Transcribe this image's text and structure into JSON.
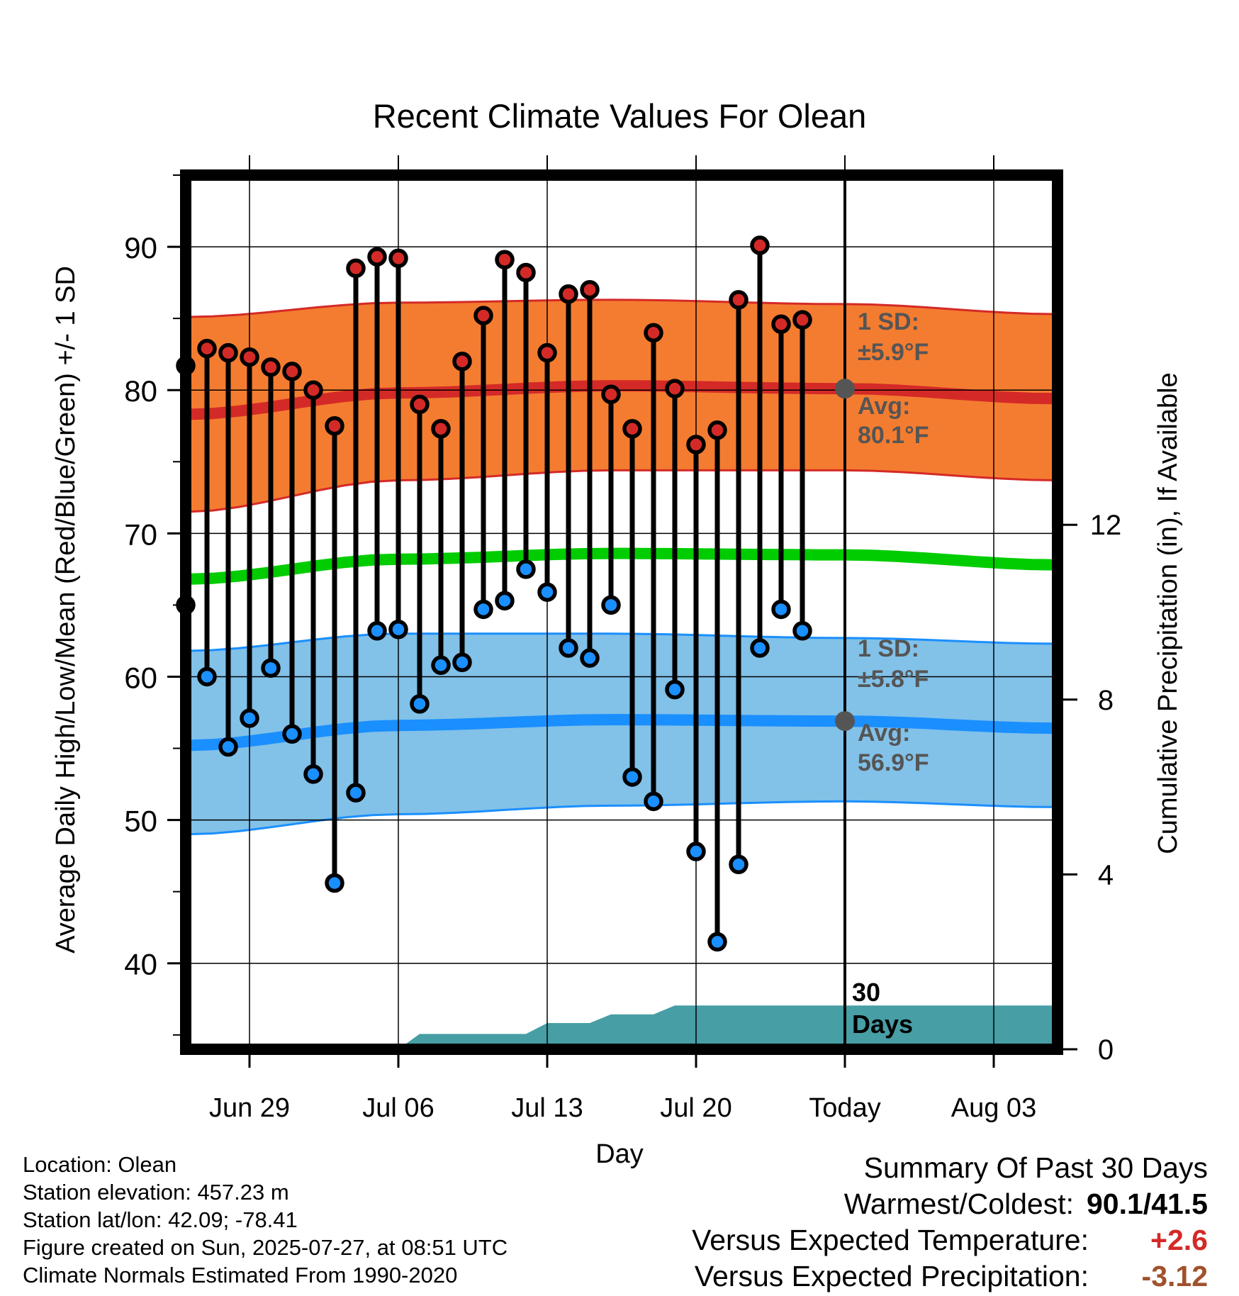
{
  "title": "Recent Climate Values For Olean",
  "y_axis_label": "Average Daily High/Low/Mean (Red/Blue/Green) +/- 1 SD",
  "y2_axis_label": "Cumulative Precipitation (in), If Available",
  "x_axis_label": "Day",
  "y_ticks": [
    "40",
    "50",
    "60",
    "70",
    "80",
    "90"
  ],
  "y2_ticks": [
    "0",
    "4",
    "8",
    "12"
  ],
  "x_ticks": [
    "Jun 29",
    "Jul 06",
    "Jul 13",
    "Jul 20",
    "Today",
    "Aug 03"
  ],
  "high_sd_title": "1 SD:",
  "high_sd_value": "±5.9°F",
  "high_avg_title": "Avg:",
  "high_avg_value": "80.1°F",
  "low_sd_title": "1 SD:",
  "low_sd_value": "±5.8°F",
  "low_avg_title": "Avg:",
  "low_avg_value": "56.9°F",
  "window_label_1": "30",
  "window_label_2": "Days",
  "footer": {
    "location": "Location: Olean",
    "elevation": "Station elevation: 457.23 m",
    "latlon": "Station lat/lon: 42.09; -78.41",
    "created": "Figure created on Sun, 2025-07-27, at 08:51 UTC",
    "normals": "Climate Normals Estimated From 1990-2020"
  },
  "summary": {
    "heading": "Summary Of Past 30 Days",
    "warm_cold_label": "Warmest/Coldest:",
    "warm_cold_value": "90.1/41.5",
    "temp_label": "Versus Expected Temperature:",
    "temp_value": "+2.6",
    "precip_label": "Versus Expected Precipitation:",
    "precip_value": "-3.12"
  },
  "colors": {
    "high_band": "#f47c30",
    "high_line": "#d42a27",
    "low_band": "#82c1e8",
    "low_line": "#1a8fff",
    "mean_line": "#00cc00",
    "precip": "#479ea5",
    "high_dot": "#d42a27",
    "low_dot": "#1a8fff",
    "annotation": "#555555"
  },
  "chart_data": {
    "type": "line",
    "x_dates": [
      "Jun 26",
      "Jun 27",
      "Jun 28",
      "Jun 29",
      "Jun 30",
      "Jul 01",
      "Jul 02",
      "Jul 03",
      "Jul 04",
      "Jul 05",
      "Jul 06",
      "Jul 07",
      "Jul 08",
      "Jul 09",
      "Jul 10",
      "Jul 11",
      "Jul 12",
      "Jul 13",
      "Jul 14",
      "Jul 15",
      "Jul 16",
      "Jul 17",
      "Jul 18",
      "Jul 19",
      "Jul 20",
      "Jul 21",
      "Jul 22",
      "Jul 23",
      "Jul 24",
      "Jul 25",
      "Jul 26"
    ],
    "x_range": [
      "Jun 26",
      "Aug 06"
    ],
    "ylim": [
      34,
      95
    ],
    "y2lim": [
      0,
      20
    ],
    "daily_high": [
      81.7,
      82.9,
      82.6,
      82.3,
      81.6,
      81.3,
      80.0,
      77.5,
      88.5,
      89.3,
      89.2,
      79.0,
      77.3,
      82.0,
      85.2,
      89.1,
      88.2,
      82.6,
      86.7,
      87.0,
      79.7,
      77.3,
      84.0,
      80.1,
      76.2,
      77.2,
      86.3,
      90.1,
      84.6,
      84.9,
      null
    ],
    "daily_low": [
      65.0,
      60.0,
      55.1,
      57.1,
      60.6,
      56.0,
      53.2,
      45.6,
      51.9,
      63.2,
      63.3,
      58.1,
      60.8,
      61.0,
      64.7,
      65.3,
      67.5,
      65.9,
      62.0,
      61.3,
      65.0,
      53.0,
      51.3,
      59.1,
      47.8,
      41.5,
      46.9,
      62.0,
      64.7,
      63.2,
      null
    ],
    "normals_dates": [
      "Jun 26",
      "Jul 06",
      "Jul 16",
      "Jul 27",
      "Aug 06"
    ],
    "avg_high": [
      78.3,
      79.8,
      80.3,
      80.1,
      79.4
    ],
    "avg_high_upper": [
      85.1,
      86.1,
      86.3,
      86.0,
      85.3
    ],
    "avg_high_lower": [
      71.5,
      73.7,
      74.4,
      74.4,
      73.7
    ],
    "avg_mean": [
      66.8,
      68.2,
      68.6,
      68.5,
      67.8
    ],
    "avg_low": [
      55.2,
      56.6,
      57.0,
      56.9,
      56.4
    ],
    "avg_low_upper": [
      61.8,
      63.0,
      63.0,
      62.7,
      62.3
    ],
    "avg_low_lower": [
      49.0,
      50.4,
      51.0,
      51.3,
      50.9
    ],
    "precip_dates": [
      "Jun 26",
      "Jul 05",
      "Jul 06",
      "Jul 07",
      "Jul 12",
      "Jul 13",
      "Jul 15",
      "Jul 16",
      "Jul 18",
      "Jul 19",
      "Jul 20",
      "Jul 26",
      "Aug 06"
    ],
    "precip_cum": [
      0,
      0,
      0,
      0.35,
      0.35,
      0.6,
      0.6,
      0.8,
      0.8,
      1.0,
      1.0,
      1.0,
      1.0
    ],
    "today": "Jul 27",
    "high_sd": 5.9,
    "low_sd": 5.8,
    "avg_high_today": 80.1,
    "avg_low_today": 56.9
  }
}
